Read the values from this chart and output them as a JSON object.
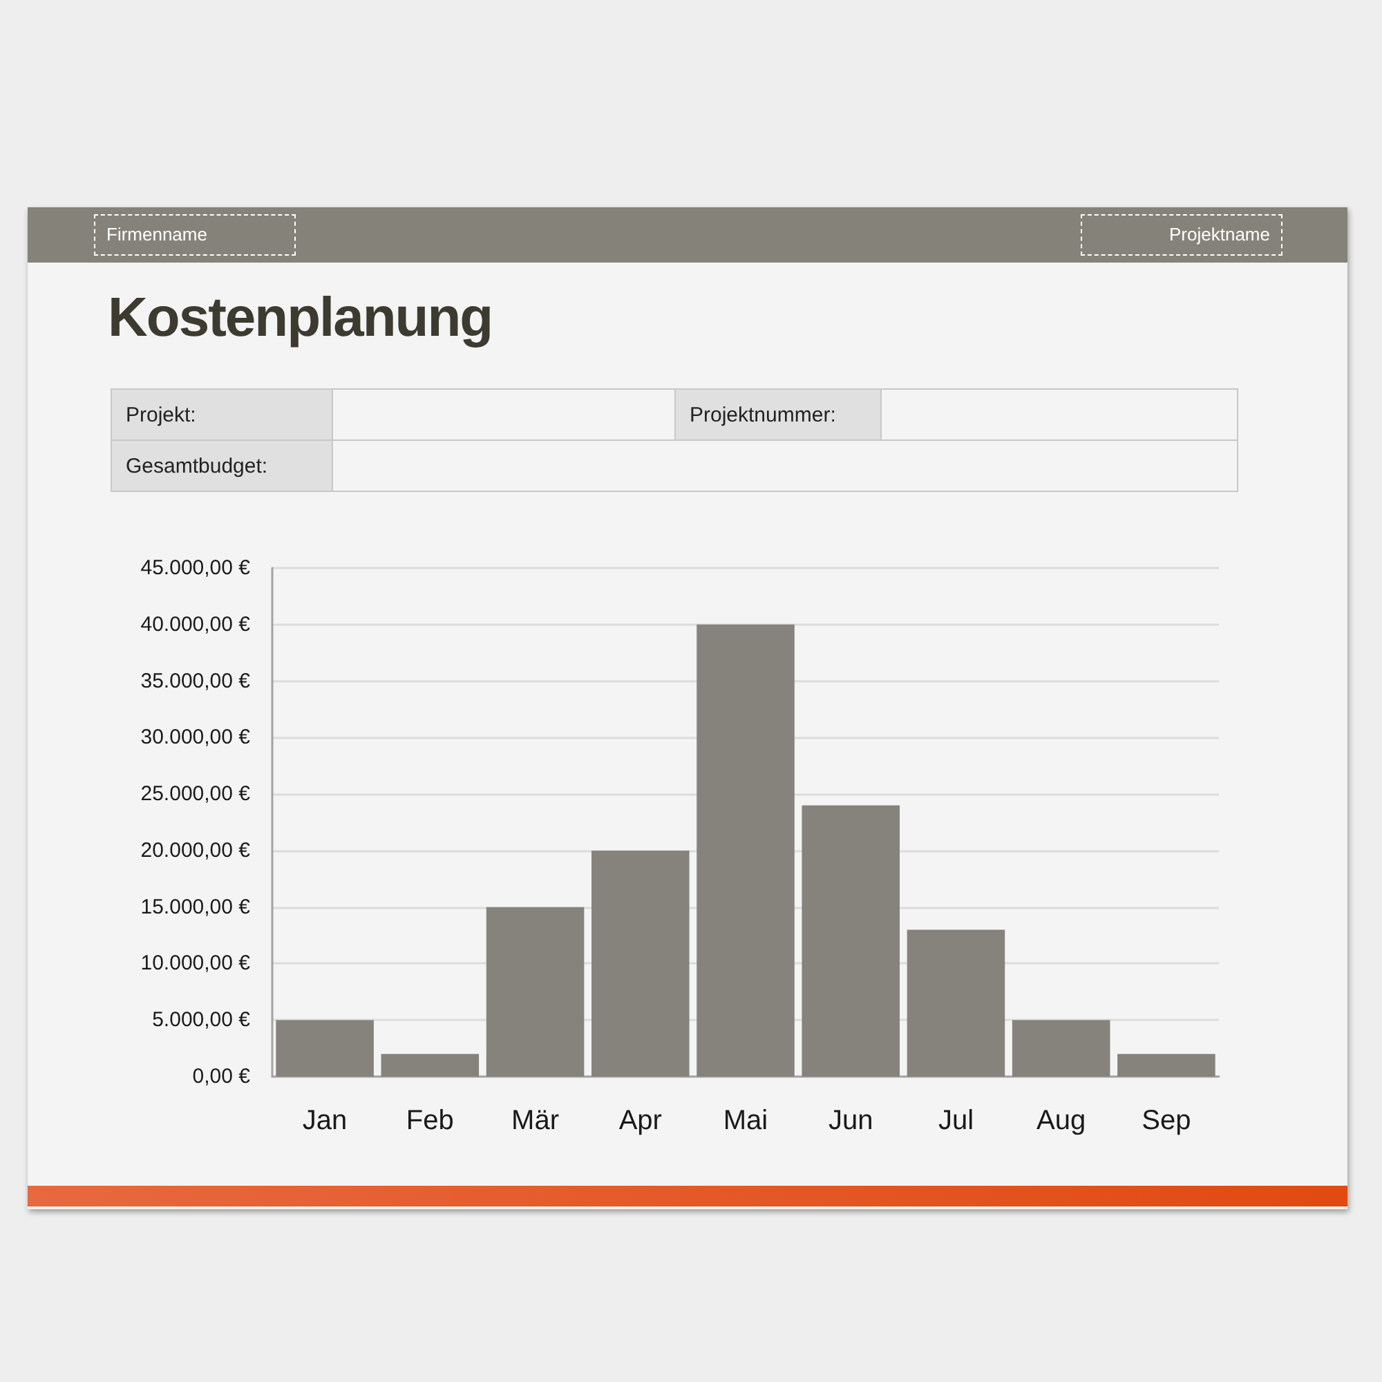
{
  "chart_data": {
    "type": "bar",
    "title": "Kostenplanung",
    "annotations": [
      "Firmenname",
      "Projektname",
      "Projekt:",
      "Projektnummer:",
      "Gesamtbudget:"
    ],
    "categories": [
      "Jan",
      "Feb",
      "Mär",
      "Apr",
      "Mai",
      "Jun",
      "Jul",
      "Aug",
      "Sep"
    ],
    "values": [
      5000,
      2000,
      15000,
      20000,
      40000,
      24000,
      13000,
      5000,
      2000
    ],
    "color": "#85837c",
    "ylim": [
      0,
      45000
    ],
    "yticks": [
      {
        "value": 0,
        "label": "0,00 €"
      },
      {
        "value": 5000,
        "label": "5.000,00 €"
      },
      {
        "value": 10000,
        "label": "10.000,00 €"
      },
      {
        "value": 15000,
        "label": "15.000,00 €"
      },
      {
        "value": 20000,
        "label": "20.000,00 €"
      },
      {
        "value": 25000,
        "label": "25.000,00 €"
      },
      {
        "value": 30000,
        "label": "30.000,00 €"
      },
      {
        "value": 35000,
        "label": "35.000,00 €"
      },
      {
        "value": 40000,
        "label": "40.000,00 €"
      },
      {
        "value": 45000,
        "label": "45.000,00 €"
      }
    ],
    "grid": "y"
  }
}
